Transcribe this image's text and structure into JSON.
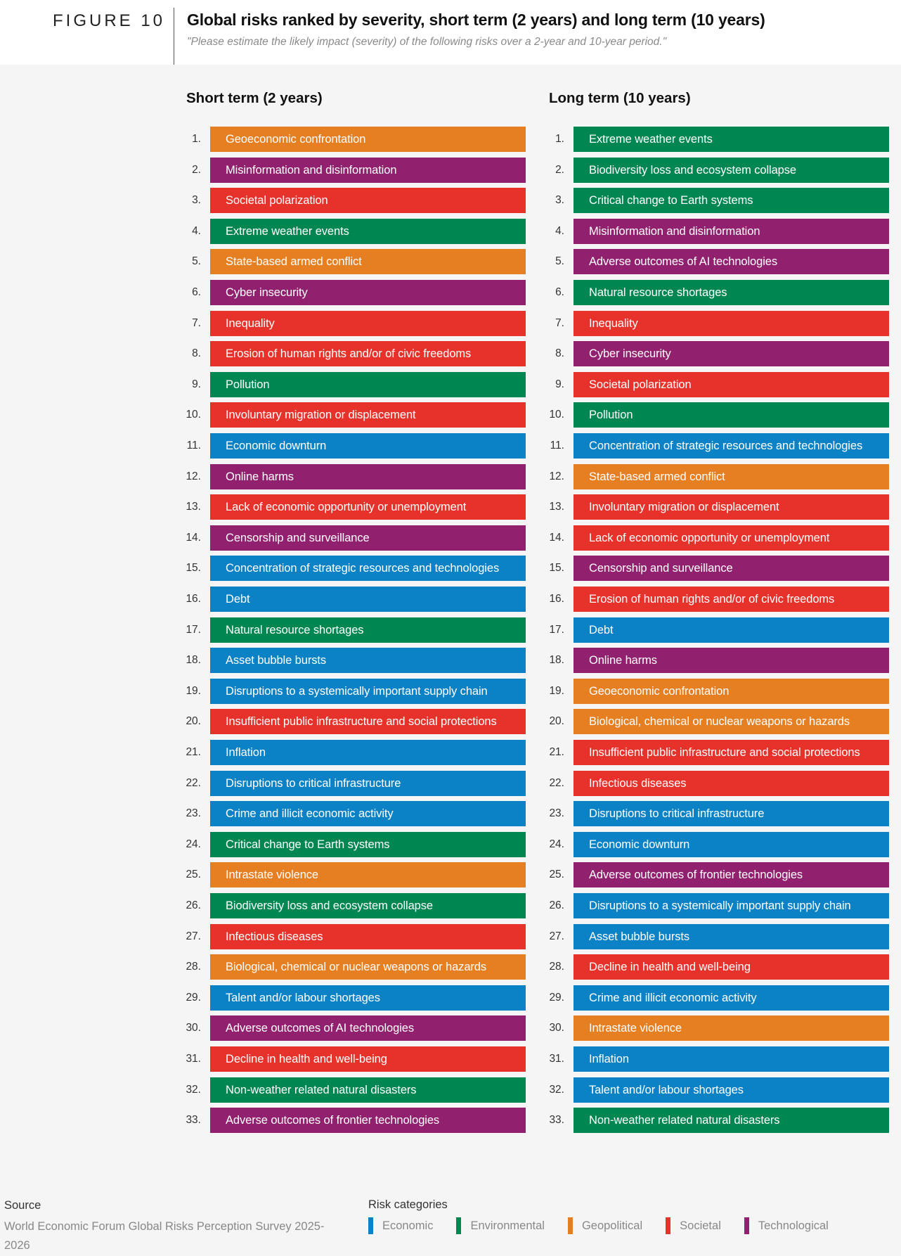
{
  "header": {
    "figure_label": "FIGURE 10",
    "title": "Global risks ranked by severity, short term (2 years) and long term (10 years)",
    "subtitle": "\"Please estimate the likely impact (severity) of the following risks over a 2-year and 10-year period.\""
  },
  "colors": {
    "Economic": "#0b82c5",
    "Environmental": "#008651",
    "Geopolitical": "#e67e22",
    "Societal": "#e6322a",
    "Technological": "#91206e"
  },
  "footer": {
    "source_label": "Source",
    "source_text": "World Economic Forum Global Risks Perception Survey 2025-2026",
    "legend_title": "Risk categories",
    "legend": [
      {
        "label": "Economic",
        "color": "#0b82c5"
      },
      {
        "label": "Environmental",
        "color": "#008651"
      },
      {
        "label": "Geopolitical",
        "color": "#e67e22"
      },
      {
        "label": "Societal",
        "color": "#e6322a"
      },
      {
        "label": "Technological",
        "color": "#91206e"
      }
    ]
  },
  "chart_data": {
    "type": "table",
    "title": "Global risks ranked by severity, short term (2 years) and long term (10 years)",
    "subtitle": "\"Please estimate the likely impact (severity) of the following risks over a 2-year and 10-year period.\"",
    "legend": [
      "Economic",
      "Environmental",
      "Geopolitical",
      "Societal",
      "Technological"
    ],
    "legend_position": "bottom",
    "columns": [
      {
        "title": "Short term (2 years)",
        "rows": [
          {
            "rank": "1.",
            "label": "Geoeconomic confrontation",
            "category": "Geopolitical"
          },
          {
            "rank": "2.",
            "label": "Misinformation and disinformation",
            "category": "Technological"
          },
          {
            "rank": "3.",
            "label": "Societal polarization",
            "category": "Societal"
          },
          {
            "rank": "4.",
            "label": "Extreme weather events",
            "category": "Environmental"
          },
          {
            "rank": "5.",
            "label": "State-based armed conflict",
            "category": "Geopolitical"
          },
          {
            "rank": "6.",
            "label": "Cyber insecurity",
            "category": "Technological"
          },
          {
            "rank": "7.",
            "label": "Inequality",
            "category": "Societal"
          },
          {
            "rank": "8.",
            "label": "Erosion of human rights and/or of civic freedoms",
            "category": "Societal"
          },
          {
            "rank": "9.",
            "label": "Pollution",
            "category": "Environmental"
          },
          {
            "rank": "10.",
            "label": "Involuntary migration or displacement",
            "category": "Societal"
          },
          {
            "rank": "11.",
            "label": "Economic downturn",
            "category": "Economic"
          },
          {
            "rank": "12.",
            "label": "Online harms",
            "category": "Technological"
          },
          {
            "rank": "13.",
            "label": "Lack of economic opportunity or unemployment",
            "category": "Societal"
          },
          {
            "rank": "14.",
            "label": "Censorship and surveillance",
            "category": "Technological"
          },
          {
            "rank": "15.",
            "label": "Concentration of strategic resources and technologies",
            "category": "Economic"
          },
          {
            "rank": "16.",
            "label": "Debt",
            "category": "Economic"
          },
          {
            "rank": "17.",
            "label": "Natural resource shortages",
            "category": "Environmental"
          },
          {
            "rank": "18.",
            "label": "Asset bubble bursts",
            "category": "Economic"
          },
          {
            "rank": "19.",
            "label": "Disruptions to a systemically important supply chain",
            "category": "Economic"
          },
          {
            "rank": "20.",
            "label": "Insufficient public infrastructure and social protections",
            "category": "Societal"
          },
          {
            "rank": "21.",
            "label": "Inflation",
            "category": "Economic"
          },
          {
            "rank": "22.",
            "label": "Disruptions to critical infrastructure",
            "category": "Economic"
          },
          {
            "rank": "23.",
            "label": "Crime and illicit economic activity",
            "category": "Economic"
          },
          {
            "rank": "24.",
            "label": "Critical change to Earth systems",
            "category": "Environmental"
          },
          {
            "rank": "25.",
            "label": "Intrastate violence",
            "category": "Geopolitical"
          },
          {
            "rank": "26.",
            "label": "Biodiversity loss and ecosystem collapse",
            "category": "Environmental"
          },
          {
            "rank": "27.",
            "label": "Infectious diseases",
            "category": "Societal"
          },
          {
            "rank": "28.",
            "label": "Biological, chemical or nuclear weapons or hazards",
            "category": "Geopolitical"
          },
          {
            "rank": "29.",
            "label": "Talent and/or labour shortages",
            "category": "Economic"
          },
          {
            "rank": "30.",
            "label": "Adverse outcomes of AI technologies",
            "category": "Technological"
          },
          {
            "rank": "31.",
            "label": "Decline in health and well-being",
            "category": "Societal"
          },
          {
            "rank": "32.",
            "label": "Non-weather related natural disasters",
            "category": "Environmental"
          },
          {
            "rank": "33.",
            "label": "Adverse outcomes of frontier technologies",
            "category": "Technological"
          }
        ]
      },
      {
        "title": "Long term (10 years)",
        "rows": [
          {
            "rank": "1.",
            "label": "Extreme weather events",
            "category": "Environmental"
          },
          {
            "rank": "2.",
            "label": "Biodiversity loss and ecosystem collapse",
            "category": "Environmental"
          },
          {
            "rank": "3.",
            "label": "Critical change to Earth systems",
            "category": "Environmental"
          },
          {
            "rank": "4.",
            "label": "Misinformation and disinformation",
            "category": "Technological"
          },
          {
            "rank": "5.",
            "label": "Adverse outcomes of AI technologies",
            "category": "Technological"
          },
          {
            "rank": "6.",
            "label": "Natural resource shortages",
            "category": "Environmental"
          },
          {
            "rank": "7.",
            "label": "Inequality",
            "category": "Societal"
          },
          {
            "rank": "8.",
            "label": "Cyber insecurity",
            "category": "Technological"
          },
          {
            "rank": "9.",
            "label": "Societal polarization",
            "category": "Societal"
          },
          {
            "rank": "10.",
            "label": "Pollution",
            "category": "Environmental"
          },
          {
            "rank": "11.",
            "label": "Concentration of strategic resources and technologies",
            "category": "Economic"
          },
          {
            "rank": "12.",
            "label": "State-based armed conflict",
            "category": "Geopolitical"
          },
          {
            "rank": "13.",
            "label": "Involuntary migration or displacement",
            "category": "Societal"
          },
          {
            "rank": "14.",
            "label": "Lack of economic opportunity or unemployment",
            "category": "Societal"
          },
          {
            "rank": "15.",
            "label": "Censorship and surveillance",
            "category": "Technological"
          },
          {
            "rank": "16.",
            "label": "Erosion of human rights and/or of civic freedoms",
            "category": "Societal"
          },
          {
            "rank": "17.",
            "label": "Debt",
            "category": "Economic"
          },
          {
            "rank": "18.",
            "label": "Online harms",
            "category": "Technological"
          },
          {
            "rank": "19.",
            "label": "Geoeconomic confrontation",
            "category": "Geopolitical"
          },
          {
            "rank": "20.",
            "label": "Biological, chemical or nuclear weapons or hazards",
            "category": "Geopolitical"
          },
          {
            "rank": "21.",
            "label": "Insufficient public infrastructure and social protections",
            "category": "Societal"
          },
          {
            "rank": "22.",
            "label": "Infectious diseases",
            "category": "Societal"
          },
          {
            "rank": "23.",
            "label": "Disruptions to critical infrastructure",
            "category": "Economic"
          },
          {
            "rank": "24.",
            "label": "Economic downturn",
            "category": "Economic"
          },
          {
            "rank": "25.",
            "label": "Adverse outcomes of frontier technologies",
            "category": "Technological"
          },
          {
            "rank": "26.",
            "label": "Disruptions to a systemically important supply chain",
            "category": "Economic"
          },
          {
            "rank": "27.",
            "label": "Asset bubble bursts",
            "category": "Economic"
          },
          {
            "rank": "28.",
            "label": "Decline in health and well-being",
            "category": "Societal"
          },
          {
            "rank": "29.",
            "label": "Crime and illicit economic activity",
            "category": "Economic"
          },
          {
            "rank": "30.",
            "label": "Intrastate violence",
            "category": "Geopolitical"
          },
          {
            "rank": "31.",
            "label": "Inflation",
            "category": "Economic"
          },
          {
            "rank": "32.",
            "label": "Talent and/or labour shortages",
            "category": "Economic"
          },
          {
            "rank": "33.",
            "label": "Non-weather related natural disasters",
            "category": "Environmental"
          }
        ]
      }
    ]
  }
}
